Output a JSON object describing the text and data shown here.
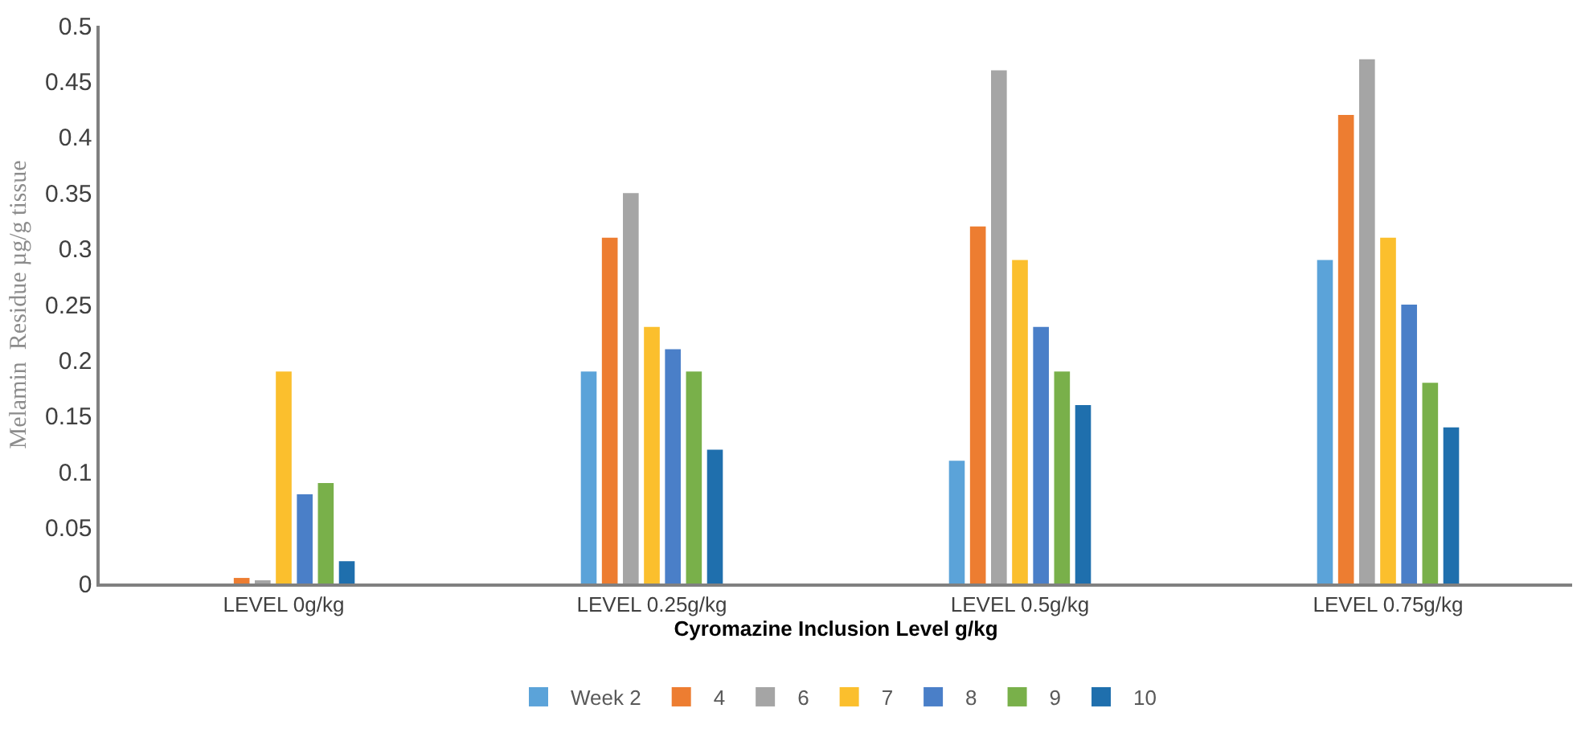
{
  "chart_data": {
    "type": "bar",
    "xlabel": "Cyromazine Inclusion Level g/kg",
    "ylabel": "Melamin  Residue µg/g tissue",
    "categories": [
      "LEVEL 0g/kg",
      "LEVEL 0.25g/kg",
      "LEVEL 0.5g/kg",
      "LEVEL 0.75g/kg"
    ],
    "series": [
      {
        "name": "Week 2",
        "color": "#5ba3d9",
        "values": [
          0,
          0.19,
          0.11,
          0.29
        ]
      },
      {
        "name": "4",
        "color": "#ed7d31",
        "values": [
          0.005,
          0.31,
          0.32,
          0.42
        ]
      },
      {
        "name": "6",
        "color": "#a5a5a5",
        "values": [
          0.002,
          0.35,
          0.46,
          0.47
        ]
      },
      {
        "name": "7",
        "color": "#fbbf2d",
        "values": [
          0.19,
          0.23,
          0.29,
          0.31
        ]
      },
      {
        "name": "8",
        "color": "#4a7fc8",
        "values": [
          0.08,
          0.21,
          0.23,
          0.25
        ]
      },
      {
        "name": "9",
        "color": "#79b04a",
        "values": [
          0.09,
          0.19,
          0.19,
          0.18
        ]
      },
      {
        "name": "10",
        "color": "#1f6fad",
        "values": [
          0.02,
          0.12,
          0.16,
          0.14
        ]
      }
    ],
    "ylim": [
      0,
      0.5
    ],
    "yticks": [
      0,
      0.05,
      0.1,
      0.15,
      0.2,
      0.25,
      0.3,
      0.35,
      0.4,
      0.45,
      0.5
    ],
    "grid": false,
    "legend": "bottom"
  }
}
